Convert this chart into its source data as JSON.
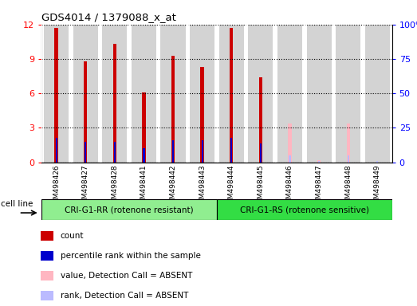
{
  "title": "GDS4014 / 1379088_x_at",
  "samples": [
    "GSM498426",
    "GSM498427",
    "GSM498428",
    "GSM498441",
    "GSM498442",
    "GSM498443",
    "GSM498444",
    "GSM498445",
    "GSM498446",
    "GSM498447",
    "GSM498448",
    "GSM498449"
  ],
  "group1_count": 6,
  "group2_count": 6,
  "group1_label": "CRI-G1-RR (rotenone resistant)",
  "group2_label": "CRI-G1-RS (rotenone sensitive)",
  "cell_line_label": "cell line",
  "group1_color": "#90EE90",
  "group2_color": "#33DD44",
  "bar_bg_color": "#D3D3D3",
  "red_count_values": [
    11.7,
    8.8,
    10.3,
    6.1,
    9.3,
    8.3,
    11.7,
    7.4,
    0,
    0,
    0,
    0
  ],
  "blue_rank_values": [
    2.1,
    1.8,
    1.8,
    1.2,
    1.9,
    1.9,
    2.1,
    1.6,
    0,
    0,
    0,
    0
  ],
  "pink_absent_values": [
    0,
    0,
    0,
    0,
    0,
    0,
    0,
    0,
    3.4,
    0.15,
    3.4,
    0.0
  ],
  "lavender_absent_values": [
    0,
    0,
    0,
    0,
    0,
    0,
    0,
    0,
    0.6,
    0.12,
    0.6,
    0.1
  ],
  "ylim_max": 12,
  "yticks": [
    0,
    3,
    6,
    9,
    12
  ],
  "y2ticks_labels": [
    "0",
    "25",
    "50",
    "75",
    "100%"
  ],
  "red_color": "#CC0000",
  "blue_color": "#0000CC",
  "pink_color": "#FFB6C1",
  "lavender_color": "#BBBBFF",
  "legend_items": [
    [
      "#CC0000",
      "count"
    ],
    [
      "#0000CC",
      "percentile rank within the sample"
    ],
    [
      "#FFB6C1",
      "value, Detection Call = ABSENT"
    ],
    [
      "#BBBBFF",
      "rank, Detection Call = ABSENT"
    ]
  ]
}
